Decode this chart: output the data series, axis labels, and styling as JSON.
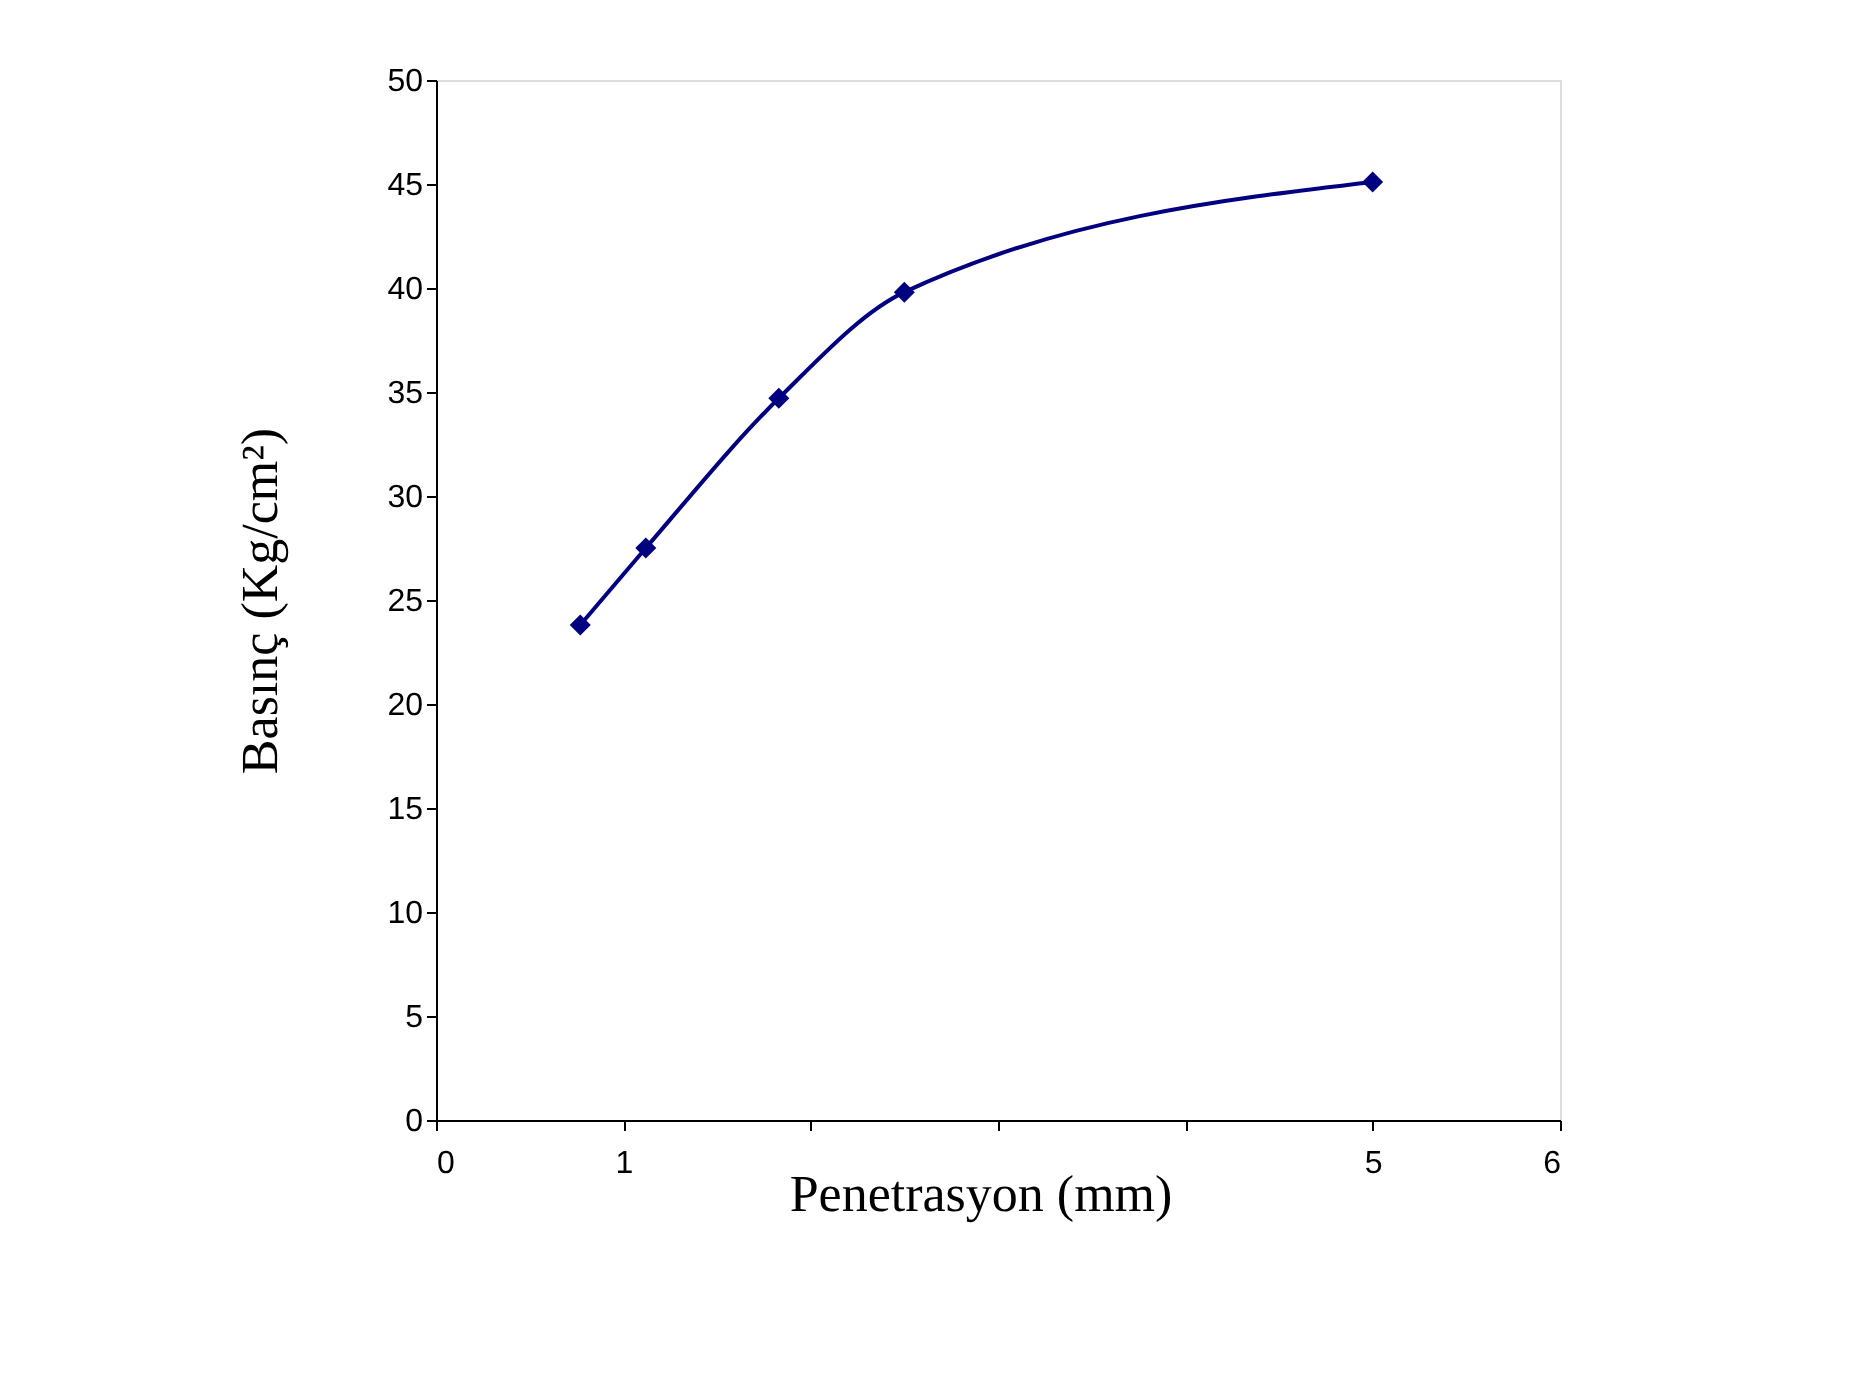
{
  "chart_data": {
    "type": "line",
    "xlabel": "Penetrasyon (mm)",
    "ylabel": "Basınç (Kg/cm²)",
    "x": [
      0.77,
      1.12,
      1.83,
      2.5,
      5.0
    ],
    "series": [
      {
        "color": "#000080",
        "values": [
          23.8,
          27.5,
          34.7,
          39.8,
          45.1
        ]
      }
    ],
    "xlim": [
      0,
      6
    ],
    "xticks": [
      0,
      1,
      {
        "value": 2,
        "label": null
      },
      {
        "value": 3,
        "label": null
      },
      {
        "value": 4,
        "label": null
      },
      5,
      6
    ],
    "ylim": [
      0,
      50
    ],
    "yticks": [
      0,
      5,
      10,
      15,
      20,
      25,
      30,
      35,
      40,
      45,
      50
    ],
    "grid": false,
    "marker": "diamond",
    "line_style": "solid"
  }
}
